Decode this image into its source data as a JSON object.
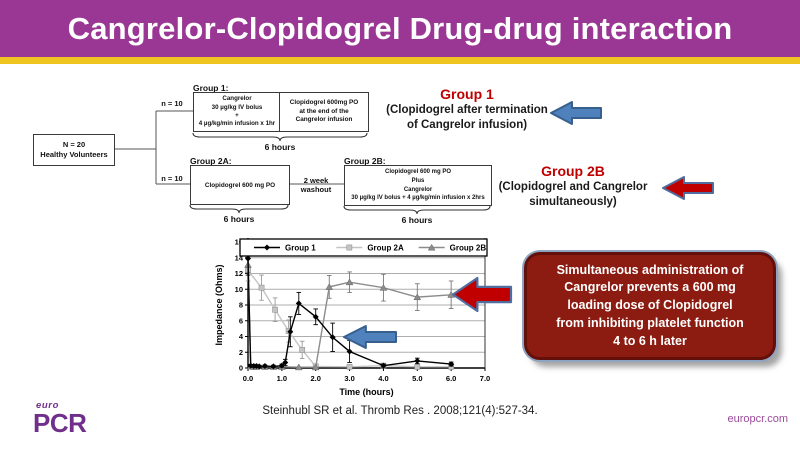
{
  "colors": {
    "header_bg": "#9A3795",
    "header_text": "#FFFFFF",
    "accent_stripe": "#EFC320",
    "group_red": "#C00000",
    "arrow_blue_fill": "#4F81BD",
    "arrow_blue_stroke": "#38608C",
    "arrow_red_fill": "#C00000",
    "arrow_red_stroke": "#4F6D9F",
    "conclusion_bg": "#8C1C11",
    "logo_purple": "#702F8A",
    "link_purple": "#9B4B9B"
  },
  "header": {
    "title": "Cangrelor-Clopidogrel Drug-drug interaction"
  },
  "diagram": {
    "root_box": [
      "N = 20",
      "Healthy Volunteers"
    ],
    "branch_top": "n = 10",
    "branch_bottom": "n = 10",
    "group1": {
      "label": "Group 1:",
      "box_a": [
        "Cangrelor",
        "30 µg/kg IV bolus",
        "+",
        "4 µg/kg/min infusion x 1hr"
      ],
      "box_b": [
        "Clopidogrel 600mg PO",
        "at the end of the",
        "Cangrelor infusion"
      ],
      "duration": "6 hours"
    },
    "group2a": {
      "label": "Group 2A:",
      "box": [
        "Clopidogrel 600 mg PO"
      ],
      "duration": "6 hours"
    },
    "washout": [
      "2 week",
      "washout"
    ],
    "group2b": {
      "label": "Group 2B:",
      "box": [
        "Clopidogrel 600 mg PO",
        "Plus",
        "Cangrelor",
        "30 µg/kg IV bolus + 4 µg/kg/min infusion x 2hrs"
      ],
      "duration": "6 hours"
    },
    "annotation_group1": {
      "title": "Group 1",
      "subtitle": [
        "(Clopidogrel after termination",
        "of Cangrelor infusion)"
      ]
    },
    "annotation_group2b": {
      "title": "Group 2B",
      "subtitle": [
        "(Clopidogrel and Cangrelor",
        "simultaneously)"
      ]
    }
  },
  "chart_data": {
    "type": "line",
    "xlabel": "Time (hours)",
    "ylabel": "Impedance (Ohms)",
    "xlim": [
      0,
      7
    ],
    "ylim": [
      0,
      16
    ],
    "xticks": [
      "0.0",
      "1.0",
      "2.0",
      "3.0",
      "4.0",
      "5.0",
      "6.0",
      "7.0"
    ],
    "yticks": [
      0,
      2,
      4,
      6,
      8,
      10,
      12,
      14,
      16
    ],
    "grid": "horizontal",
    "legend_position": "top-inside",
    "series": [
      {
        "name": "Group 2A",
        "marker": "square",
        "color": "#C4C4C4",
        "err_color": "#9A9A9A",
        "x": [
          0,
          0.4,
          0.8,
          1.2,
          1.6,
          2.0,
          3.0,
          4.0,
          5.0,
          6.0
        ],
        "y": [
          12.4,
          10.2,
          7.4,
          4.7,
          2.3,
          0.2,
          0.15,
          0.3,
          0.15,
          0.15
        ],
        "err": [
          1.35,
          1.6,
          1.5,
          1.4,
          1.1,
          0.15,
          0.1,
          0.2,
          0.1,
          0.1
        ]
      },
      {
        "name": "Group 2B",
        "marker": "triangle",
        "color": "#8C8C8C",
        "err_color": "#777777",
        "x": [
          0,
          0.08,
          0.17,
          0.25,
          0.5,
          0.75,
          1.0,
          1.5,
          2.0,
          2.4,
          3.0,
          4.0,
          5.0,
          6.0
        ],
        "y": [
          13.1,
          0.2,
          0.15,
          0.15,
          0.15,
          0.15,
          0.15,
          0.1,
          0.1,
          10.3,
          10.9,
          10.2,
          9.0,
          9.3
        ],
        "err": [
          1.0,
          0,
          0,
          0,
          0,
          0,
          0,
          0,
          0,
          1.45,
          1.3,
          1.7,
          1.7,
          1.75
        ]
      },
      {
        "name": "Group 1",
        "marker": "diamond",
        "color": "#000000",
        "err_color": "#000000",
        "x": [
          0,
          0.08,
          0.17,
          0.25,
          0.33,
          0.5,
          0.75,
          1.0,
          1.1,
          1.25,
          1.5,
          2.0,
          2.5,
          3.0,
          4.0,
          5.0,
          6.0
        ],
        "y": [
          13.9,
          0.3,
          0.25,
          0.25,
          0.2,
          0.25,
          0.2,
          0.3,
          0.7,
          4.6,
          8.2,
          6.5,
          3.9,
          2.1,
          0.3,
          0.9,
          0.5
        ],
        "err": [
          2.1,
          0.15,
          0.15,
          0.15,
          0.15,
          0.15,
          0.15,
          0.2,
          0.4,
          1.9,
          1.4,
          1.0,
          1.8,
          1.4,
          0.2,
          0.35,
          0.25
        ]
      }
    ],
    "legend_order": [
      "Group 1",
      "Group 2A",
      "Group 2B"
    ]
  },
  "conclusion": {
    "lines": [
      "Simultaneous administration of",
      "Cangrelor prevents a 600 mg",
      "loading dose of Clopidogrel",
      "from inhibiting platelet function",
      "4 to 6 h later"
    ]
  },
  "footer": {
    "citation": "Steinhubl SR et al. Thromb Res . 2008;121(4):527-34.",
    "logo_top": "euro",
    "logo_main": "PCR",
    "website": "europcr.com"
  }
}
